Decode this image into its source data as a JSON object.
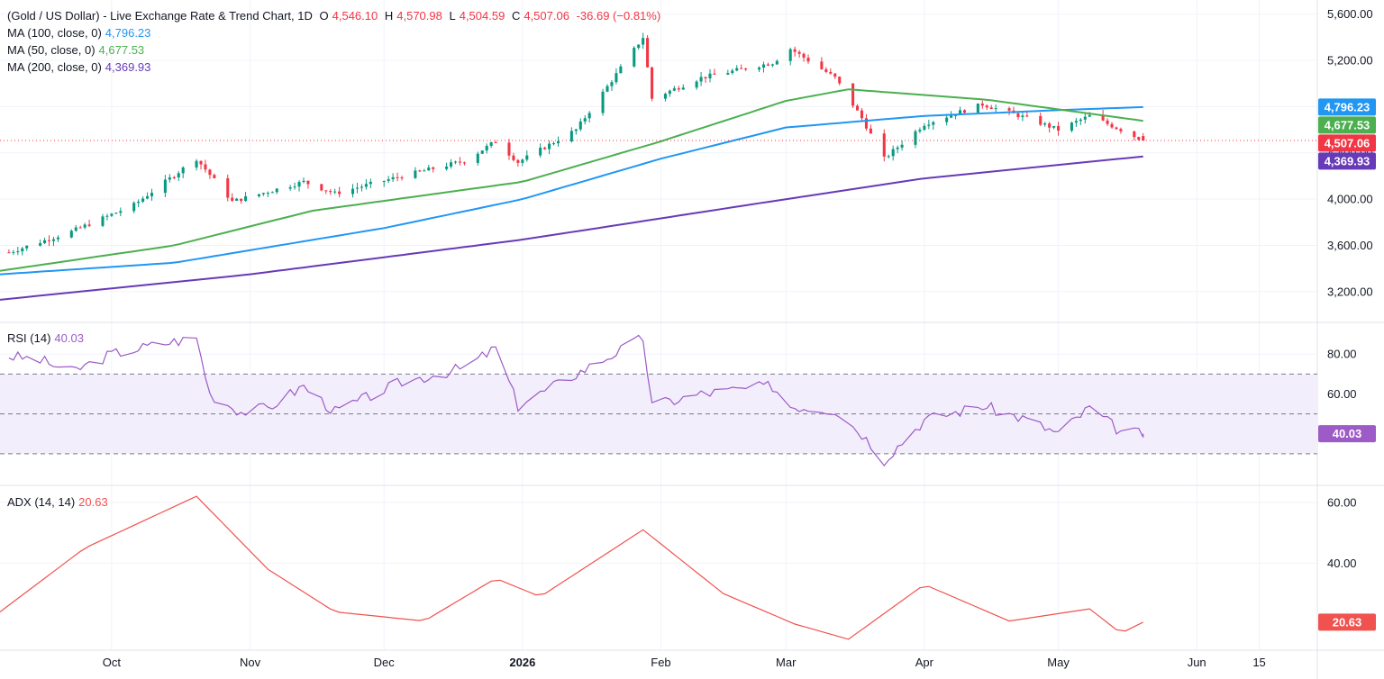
{
  "header": {
    "title": "(Gold / US Dollar) - Live Exchange Rate & Trend Chart, 1D",
    "o_label": "O",
    "o": "4,546.10",
    "h_label": "H",
    "h": "4,570.98",
    "l_label": "L",
    "l": "4,504.59",
    "c_label": "C",
    "c": "4,507.06",
    "change": "-36.69 (−0.81%)"
  },
  "legend": {
    "ma100": {
      "label": "MA (100, close, 0)",
      "value": "4,796.23",
      "color": "#2196f3"
    },
    "ma50": {
      "label": "MA (50, close, 0)",
      "value": "4,677.53",
      "color": "#4caf50"
    },
    "ma200": {
      "label": "MA (200, close, 0)",
      "value": "4,369.93",
      "color": "#673ab7"
    },
    "rsi": {
      "label": "RSI (14)",
      "value": "40.03",
      "color": "#9c5bc6"
    },
    "adx": {
      "label": "ADX (14, 14)",
      "value": "20.63",
      "color": "#f0524f"
    }
  },
  "colors": {
    "up": "#089981",
    "down": "#f23645",
    "grid": "#f0f3fa",
    "rsi_band": "#f3eefc"
  },
  "price_tags": [
    {
      "value": "4,796.23",
      "color": "#2196f3"
    },
    {
      "value": "4,677.53",
      "color": "#4caf50"
    },
    {
      "value": "4,507.06",
      "color": "#f23645"
    },
    {
      "value": "4,369.93",
      "color": "#673ab7"
    }
  ],
  "rsi_tag": {
    "value": "40.03",
    "color": "#9c5bc6"
  },
  "adx_tag": {
    "value": "20.63",
    "color": "#f0524f"
  },
  "chart_data": [
    {
      "type": "candlestick",
      "title": "(Gold / US Dollar) - Live Exchange Rate & Trend Chart, 1D",
      "y_ticks": [
        "5,600.00",
        "5,200.00",
        "4,800.00",
        "4,400.00",
        "4,000.00",
        "3,600.00",
        "3,200.00"
      ],
      "y_tick_values": [
        5600,
        5200,
        4800,
        4400,
        4000,
        3600,
        3200
      ],
      "ylim": [
        2950,
        5660
      ],
      "x_tick_labels": [
        {
          "label": "Oct",
          "date": "2025-10-01"
        },
        {
          "label": "Nov",
          "date": "2025-11-01"
        },
        {
          "label": "Dec",
          "date": "2025-12-01"
        },
        {
          "label": "2026",
          "date": "2026-01-01",
          "bold": true
        },
        {
          "label": "Feb",
          "date": "2026-02-01"
        },
        {
          "label": "Mar",
          "date": "2026-03-01"
        },
        {
          "label": "Apr",
          "date": "2026-04-01"
        },
        {
          "label": "May",
          "date": "2026-05-01"
        },
        {
          "label": "Jun",
          "date": "2026-06-01"
        },
        {
          "label": "15",
          "date": "2026-06-15"
        }
      ],
      "x_range": [
        "2025-09-06",
        "2026-06-28"
      ],
      "closes": [
        {
          "date": "2025-09-08",
          "close": 3540
        },
        {
          "date": "2025-09-22",
          "close": 3720
        },
        {
          "date": "2025-10-06",
          "close": 3950
        },
        {
          "date": "2025-10-20",
          "close": 4350
        },
        {
          "date": "2025-10-28",
          "close": 3980
        },
        {
          "date": "2025-11-13",
          "close": 4150
        },
        {
          "date": "2025-11-20",
          "close": 4050
        },
        {
          "date": "2025-12-05",
          "close": 4200
        },
        {
          "date": "2025-12-19",
          "close": 4330
        },
        {
          "date": "2025-12-26",
          "close": 4500
        },
        {
          "date": "2025-12-31",
          "close": 4320
        },
        {
          "date": "2026-01-13",
          "close": 4600
        },
        {
          "date": "2026-01-28",
          "close": 5400
        },
        {
          "date": "2026-01-30",
          "close": 4870
        },
        {
          "date": "2026-02-10",
          "close": 5050
        },
        {
          "date": "2026-02-26",
          "close": 5180
        },
        {
          "date": "2026-03-02",
          "close": 5300
        },
        {
          "date": "2026-03-12",
          "close": 5050
        },
        {
          "date": "2026-03-18",
          "close": 4700
        },
        {
          "date": "2026-03-23",
          "close": 4350
        },
        {
          "date": "2026-04-01",
          "close": 4650
        },
        {
          "date": "2026-04-14",
          "close": 4820
        },
        {
          "date": "2026-04-24",
          "close": 4700
        },
        {
          "date": "2026-05-01",
          "close": 4600
        },
        {
          "date": "2026-05-08",
          "close": 4720
        },
        {
          "date": "2026-05-15",
          "close": 4600
        },
        {
          "date": "2026-05-20",
          "close": 4507
        }
      ],
      "last_candle": {
        "date": "2026-05-20",
        "open": 4546.1,
        "high": 4570.98,
        "low": 4504.59,
        "close": 4507.06
      },
      "ma100": [
        {
          "date": "2025-09-06",
          "value": 3350
        },
        {
          "date": "2025-10-15",
          "value": 3450
        },
        {
          "date": "2025-12-01",
          "value": 3750
        },
        {
          "date": "2026-01-01",
          "value": 4000
        },
        {
          "date": "2026-02-01",
          "value": 4350
        },
        {
          "date": "2026-03-01",
          "value": 4620
        },
        {
          "date": "2026-04-01",
          "value": 4720
        },
        {
          "date": "2026-05-01",
          "value": 4770
        },
        {
          "date": "2026-05-20",
          "value": 4796.23
        }
      ],
      "ma50": [
        {
          "date": "2025-09-06",
          "value": 3380
        },
        {
          "date": "2025-10-15",
          "value": 3600
        },
        {
          "date": "2025-11-15",
          "value": 3900
        },
        {
          "date": "2026-01-01",
          "value": 4150
        },
        {
          "date": "2026-02-01",
          "value": 4500
        },
        {
          "date": "2026-03-01",
          "value": 4850
        },
        {
          "date": "2026-03-15",
          "value": 4950
        },
        {
          "date": "2026-04-15",
          "value": 4860
        },
        {
          "date": "2026-05-20",
          "value": 4677.53
        }
      ],
      "ma200": [
        {
          "date": "2025-09-06",
          "value": 3130
        },
        {
          "date": "2025-11-01",
          "value": 3350
        },
        {
          "date": "2026-01-01",
          "value": 3650
        },
        {
          "date": "2026-03-01",
          "value": 4000
        },
        {
          "date": "2026-04-01",
          "value": 4180
        },
        {
          "date": "2026-05-20",
          "value": 4369.93
        }
      ],
      "current_price": 4507.06
    },
    {
      "type": "line",
      "name": "RSI (14)",
      "y_ticks": [
        "80.00",
        "60.00",
        "40.00"
      ],
      "y_tick_values": [
        80,
        60,
        40
      ],
      "ylim": [
        15,
        95
      ],
      "band": [
        30,
        70
      ],
      "midline": 50,
      "points": [
        {
          "date": "2025-09-08",
          "value": 79
        },
        {
          "date": "2025-09-15",
          "value": 77
        },
        {
          "date": "2025-09-22",
          "value": 71
        },
        {
          "date": "2025-10-01",
          "value": 80
        },
        {
          "date": "2025-10-14",
          "value": 86
        },
        {
          "date": "2025-10-20",
          "value": 88
        },
        {
          "date": "2025-10-23",
          "value": 60
        },
        {
          "date": "2025-10-30",
          "value": 51
        },
        {
          "date": "2025-11-05",
          "value": 53
        },
        {
          "date": "2025-11-13",
          "value": 64
        },
        {
          "date": "2025-11-20",
          "value": 51
        },
        {
          "date": "2025-12-05",
          "value": 66
        },
        {
          "date": "2025-12-19",
          "value": 73
        },
        {
          "date": "2025-12-26",
          "value": 83
        },
        {
          "date": "2025-12-31",
          "value": 54
        },
        {
          "date": "2026-01-13",
          "value": 70
        },
        {
          "date": "2026-01-28",
          "value": 88
        },
        {
          "date": "2026-01-30",
          "value": 54
        },
        {
          "date": "2026-02-10",
          "value": 60
        },
        {
          "date": "2026-02-26",
          "value": 64
        },
        {
          "date": "2026-03-02",
          "value": 54
        },
        {
          "date": "2026-03-12",
          "value": 52
        },
        {
          "date": "2026-03-18",
          "value": 40
        },
        {
          "date": "2026-03-23",
          "value": 27
        },
        {
          "date": "2026-04-01",
          "value": 47
        },
        {
          "date": "2026-04-14",
          "value": 54
        },
        {
          "date": "2026-04-24",
          "value": 47
        },
        {
          "date": "2026-05-01",
          "value": 40
        },
        {
          "date": "2026-05-08",
          "value": 53
        },
        {
          "date": "2026-05-15",
          "value": 41
        },
        {
          "date": "2026-05-20",
          "value": 40.03
        }
      ]
    },
    {
      "type": "line",
      "name": "ADX (14, 14)",
      "y_ticks": [
        "60.00",
        "40.00"
      ],
      "y_tick_values": [
        60,
        40
      ],
      "ylim": [
        12,
        65
      ],
      "points": [
        {
          "date": "2025-09-06",
          "value": 24
        },
        {
          "date": "2025-09-25",
          "value": 45
        },
        {
          "date": "2025-10-20",
          "value": 62
        },
        {
          "date": "2025-11-05",
          "value": 38
        },
        {
          "date": "2025-11-20",
          "value": 24
        },
        {
          "date": "2025-12-10",
          "value": 21
        },
        {
          "date": "2025-12-26",
          "value": 35
        },
        {
          "date": "2026-01-05",
          "value": 29
        },
        {
          "date": "2026-01-28",
          "value": 51
        },
        {
          "date": "2026-02-15",
          "value": 30
        },
        {
          "date": "2026-03-03",
          "value": 20
        },
        {
          "date": "2026-03-15",
          "value": 15
        },
        {
          "date": "2026-04-01",
          "value": 33
        },
        {
          "date": "2026-04-20",
          "value": 21
        },
        {
          "date": "2026-05-08",
          "value": 25
        },
        {
          "date": "2026-05-15",
          "value": 17
        },
        {
          "date": "2026-05-20",
          "value": 20.63
        }
      ]
    }
  ]
}
